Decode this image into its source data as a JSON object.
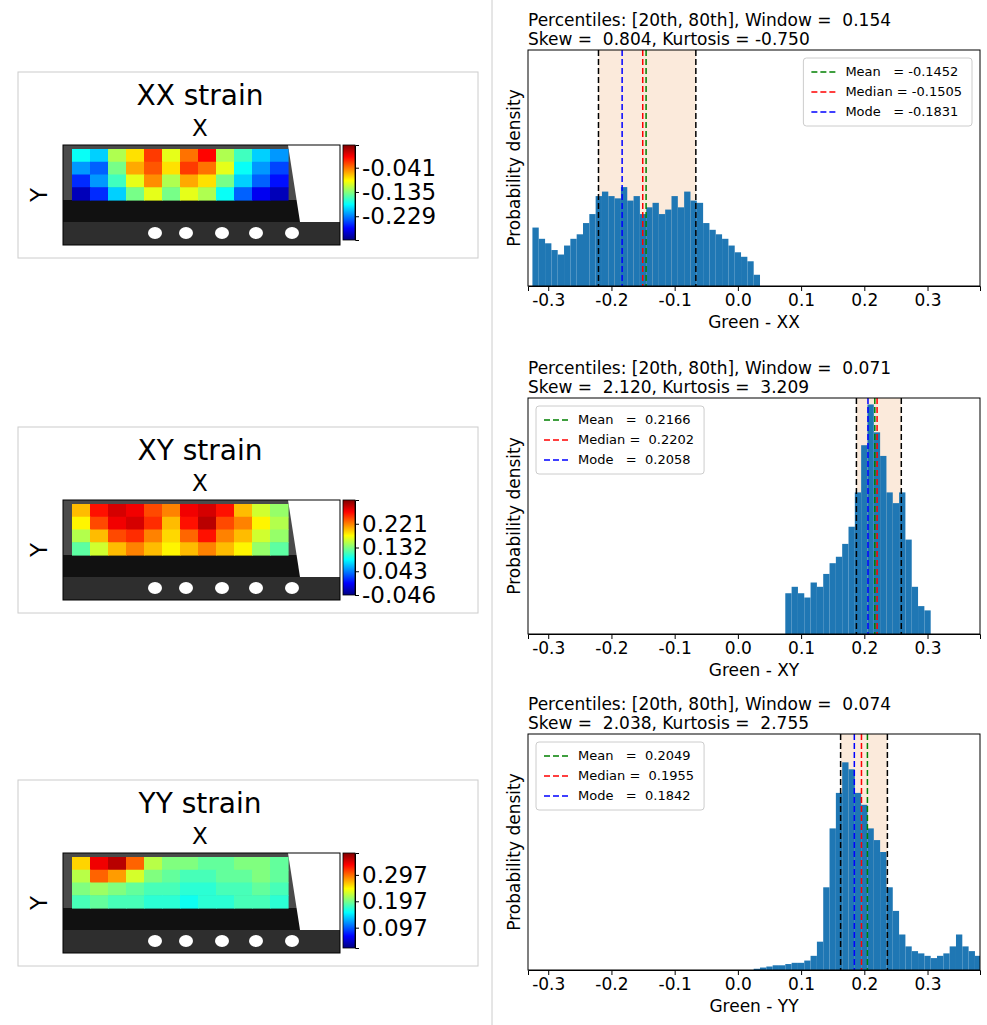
{
  "chart_data": [
    {
      "type": "heatmap",
      "title": "XX strain",
      "xlabel": "X",
      "ylabel": "Y",
      "tick_labels": false,
      "cells": [
        [
          -0.18,
          -0.2,
          -0.12,
          -0.08,
          -0.02,
          -0.1,
          -0.04,
          0.0,
          -0.12,
          -0.16,
          -0.2,
          -0.22
        ],
        [
          -0.22,
          -0.24,
          -0.14,
          -0.06,
          -0.03,
          -0.08,
          -0.02,
          -0.04,
          -0.1,
          -0.18,
          -0.22,
          -0.25
        ],
        [
          -0.26,
          -0.22,
          -0.16,
          -0.1,
          -0.05,
          -0.12,
          -0.06,
          -0.08,
          -0.14,
          -0.2,
          -0.24,
          -0.27
        ],
        [
          -0.3,
          -0.26,
          -0.2,
          -0.14,
          -0.1,
          -0.14,
          -0.1,
          -0.12,
          -0.18,
          -0.24,
          -0.28,
          -0.3
        ]
      ],
      "colorbar": {
        "lim": [
          -0.321,
          0.047
        ],
        "ticks": [
          -0.041,
          -0.135,
          -0.229
        ]
      }
    },
    {
      "type": "heatmap",
      "title": "XY strain",
      "xlabel": "X",
      "ylabel": "Y",
      "tick_labels": false,
      "cells": [
        [
          0.2,
          0.26,
          0.28,
          0.27,
          0.24,
          0.22,
          0.27,
          0.28,
          0.26,
          0.2,
          0.16,
          0.14
        ],
        [
          0.18,
          0.24,
          0.27,
          0.28,
          0.25,
          0.2,
          0.26,
          0.29,
          0.24,
          0.22,
          0.18,
          0.15
        ],
        [
          0.15,
          0.2,
          0.24,
          0.25,
          0.22,
          0.19,
          0.23,
          0.26,
          0.22,
          0.2,
          0.16,
          0.14
        ],
        [
          0.12,
          0.16,
          0.2,
          0.22,
          0.2,
          0.18,
          0.2,
          0.22,
          0.2,
          0.18,
          0.14,
          0.12
        ]
      ],
      "colorbar": {
        "lim": [
          -0.046,
          0.31
        ],
        "ticks": [
          0.221,
          0.132,
          0.043,
          -0.046
        ]
      }
    },
    {
      "type": "heatmap",
      "title": "YY strain",
      "xlabel": "X",
      "ylabel": "Y",
      "tick_labels": false,
      "cells": [
        [
          0.26,
          0.34,
          0.36,
          0.3,
          0.22,
          0.2,
          0.2,
          0.19,
          0.19,
          0.2,
          0.2,
          0.19
        ],
        [
          0.22,
          0.3,
          0.28,
          0.23,
          0.2,
          0.19,
          0.18,
          0.18,
          0.19,
          0.19,
          0.2,
          0.19
        ],
        [
          0.2,
          0.21,
          0.2,
          0.19,
          0.18,
          0.18,
          0.17,
          0.17,
          0.18,
          0.18,
          0.19,
          0.18
        ],
        [
          0.18,
          0.19,
          0.18,
          0.18,
          0.17,
          0.17,
          0.16,
          0.17,
          0.17,
          0.18,
          0.18,
          0.17
        ]
      ],
      "colorbar": {
        "lim": [
          0.02,
          0.38
        ],
        "ticks": [
          0.297,
          0.197,
          0.097
        ]
      }
    },
    {
      "type": "histogram",
      "title": [
        "Percentiles: [20th, 80th], Window =  0.154",
        "Skew =  0.804, Kurtosis = -0.750"
      ],
      "xlabel": "Green - XX",
      "ylabel": "Probability density",
      "color": "#1f77b4",
      "bins": [
        -0.325,
        -0.315,
        -0.305,
        -0.295,
        -0.285,
        -0.275,
        -0.265,
        -0.255,
        -0.245,
        -0.235,
        -0.225,
        -0.215,
        -0.205,
        -0.195,
        -0.185,
        -0.175,
        -0.165,
        -0.155,
        -0.145,
        -0.135,
        -0.125,
        -0.115,
        -0.105,
        -0.095,
        -0.085,
        -0.075,
        -0.065,
        -0.055,
        -0.045,
        -0.035,
        -0.025,
        -0.015,
        -0.005,
        0.005,
        0.015,
        0.025,
        0.035
      ],
      "values": [
        2.6,
        2.1,
        1.9,
        1.6,
        1.4,
        1.8,
        2.1,
        2.3,
        2.8,
        3.2,
        4.0,
        4.2,
        4.0,
        3.9,
        4.4,
        3.8,
        4.0,
        3.2,
        3.5,
        3.7,
        3.2,
        3.4,
        4.0,
        3.5,
        4.2,
        3.8,
        3.7,
        2.8,
        2.5,
        2.3,
        2.1,
        1.8,
        1.5,
        1.3,
        1.1,
        0.5
      ],
      "xlim": [
        -0.332,
        0.383
      ],
      "xticks": [
        -0.3,
        -0.2,
        -0.1,
        {
          "value": 0,
          "label": "0.0"
        },
        0.1,
        0.2,
        0.3
      ],
      "ylim": [
        0,
        10.5
      ],
      "tick_labels": "x",
      "band": [
        -0.2205,
        -0.0665
      ],
      "markers": [
        {
          "label": "Mean   = -0.1452",
          "value": -0.1452,
          "color": "#008000"
        },
        {
          "label": "Median = -0.1505",
          "value": -0.1505,
          "color": "#ff0000"
        },
        {
          "label": "Mode   = -0.1831",
          "value": -0.1831,
          "color": "#0000ff"
        }
      ],
      "legend": "upper right"
    },
    {
      "type": "histogram",
      "title": [
        "Percentiles: [20th, 80th], Window =  0.071",
        "Skew =  2.120, Kurtosis =  3.209"
      ],
      "xlabel": "Green - XY",
      "ylabel": "Probability density",
      "color": "#1f77b4",
      "bins": [
        0.075,
        0.085,
        0.095,
        0.105,
        0.115,
        0.125,
        0.135,
        0.145,
        0.155,
        0.165,
        0.175,
        0.185,
        0.195,
        0.205,
        0.215,
        0.225,
        0.235,
        0.245,
        0.255,
        0.265,
        0.275,
        0.285,
        0.295,
        0.305
      ],
      "values": [
        1.9,
        2.2,
        1.9,
        1.7,
        2.4,
        2.2,
        2.8,
        3.3,
        3.6,
        4.2,
        5.0,
        6.6,
        8.8,
        10.7,
        9.4,
        8.3,
        6.6,
        6.1,
        6.6,
        4.4,
        2.2,
        1.3,
        1.1
      ],
      "xlim": [
        -0.332,
        0.383
      ],
      "xticks": [
        -0.3,
        -0.2,
        -0.1,
        {
          "value": 0,
          "label": "0.0"
        },
        0.1,
        0.2,
        0.3
      ],
      "ylim": [
        0,
        11
      ],
      "tick_labels": "x",
      "band": [
        0.1875,
        0.2585
      ],
      "markers": [
        {
          "label": "Mean   =  0.2166",
          "value": 0.2166,
          "color": "#008000"
        },
        {
          "label": "Median =  0.2202",
          "value": 0.2202,
          "color": "#ff0000"
        },
        {
          "label": "Mode   =  0.2058",
          "value": 0.2058,
          "color": "#0000ff"
        }
      ],
      "legend": "upper left"
    },
    {
      "type": "histogram",
      "title": [
        "Percentiles: [20th, 80th], Window =  0.074",
        "Skew =  2.038, Kurtosis =  2.755"
      ],
      "xlabel": "Green - YY",
      "ylabel": "Probability density",
      "color": "#1f77b4",
      "bins": [
        0.025,
        0.035,
        0.045,
        0.055,
        0.065,
        0.075,
        0.085,
        0.095,
        0.105,
        0.115,
        0.125,
        0.135,
        0.145,
        0.155,
        0.165,
        0.175,
        0.185,
        0.195,
        0.205,
        0.215,
        0.225,
        0.235,
        0.245,
        0.255,
        0.265,
        0.275,
        0.285,
        0.295,
        0.305,
        0.315,
        0.325,
        0.335,
        0.345,
        0.355,
        0.365,
        0.375,
        0.385
      ],
      "values": [
        0.06,
        0.12,
        0.17,
        0.23,
        0.23,
        0.29,
        0.35,
        0.35,
        0.46,
        0.69,
        1.38,
        4.03,
        6.9,
        8.63,
        10.12,
        9.78,
        8.63,
        8.05,
        6.9,
        6.33,
        5.75,
        4.03,
        2.88,
        1.73,
        1.15,
        0.92,
        0.81,
        0.69,
        0.58,
        0.69,
        0.81,
        1.15,
        1.73,
        1.15,
        0.92,
        0.69
      ],
      "xlim": [
        -0.332,
        0.383
      ],
      "xticks": [
        -0.3,
        -0.2,
        -0.1,
        {
          "value": 0,
          "label": "0.0"
        },
        0.1,
        0.2,
        0.3
      ],
      "ylim": [
        0,
        11.5
      ],
      "tick_labels": "x",
      "band": [
        0.1625,
        0.2365
      ],
      "markers": [
        {
          "label": "Mean   =  0.2049",
          "value": 0.2049,
          "color": "#008000"
        },
        {
          "label": "Median =  0.1955",
          "value": 0.1955,
          "color": "#ff0000"
        },
        {
          "label": "Mode   =  0.1842",
          "value": 0.1842,
          "color": "#0000ff"
        }
      ],
      "legend": "upper left"
    }
  ]
}
